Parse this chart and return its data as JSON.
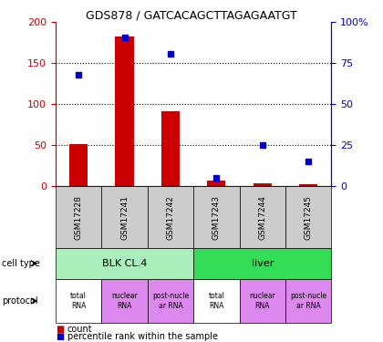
{
  "title": "GDS878 / GATCACAGCTTAGAGAATGT",
  "samples": [
    "GSM17228",
    "GSM17241",
    "GSM17242",
    "GSM17243",
    "GSM17244",
    "GSM17245"
  ],
  "counts": [
    52,
    183,
    92,
    7,
    4,
    3
  ],
  "percentiles": [
    68,
    91,
    81,
    5,
    25,
    15
  ],
  "ylim_left": [
    0,
    200
  ],
  "ylim_right": [
    0,
    100
  ],
  "left_ticks": [
    0,
    50,
    100,
    150,
    200
  ],
  "right_ticks": [
    0,
    25,
    50,
    75,
    100
  ],
  "right_tick_labels": [
    "0",
    "25",
    "50",
    "75",
    "100%"
  ],
  "cell_types": [
    {
      "label": "BLK CL.4",
      "span": [
        0,
        3
      ],
      "color": "#aaeebb"
    },
    {
      "label": "liver",
      "span": [
        3,
        6
      ],
      "color": "#33dd55"
    }
  ],
  "protocols": [
    {
      "label": "total\nRNA",
      "color": "#ffffff"
    },
    {
      "label": "nuclear\nRNA",
      "color": "#dd88ee"
    },
    {
      "label": "post-nucle\nar RNA",
      "color": "#dd88ee"
    },
    {
      "label": "total\nRNA",
      "color": "#ffffff"
    },
    {
      "label": "nuclear\nRNA",
      "color": "#dd88ee"
    },
    {
      "label": "post-nucle\nar RNA",
      "color": "#dd88ee"
    }
  ],
  "bar_color": "#cc0000",
  "dot_color": "#0000cc",
  "label_color_left": "#cc0000",
  "label_color_right": "#0000cc",
  "sample_box_color": "#cccccc"
}
